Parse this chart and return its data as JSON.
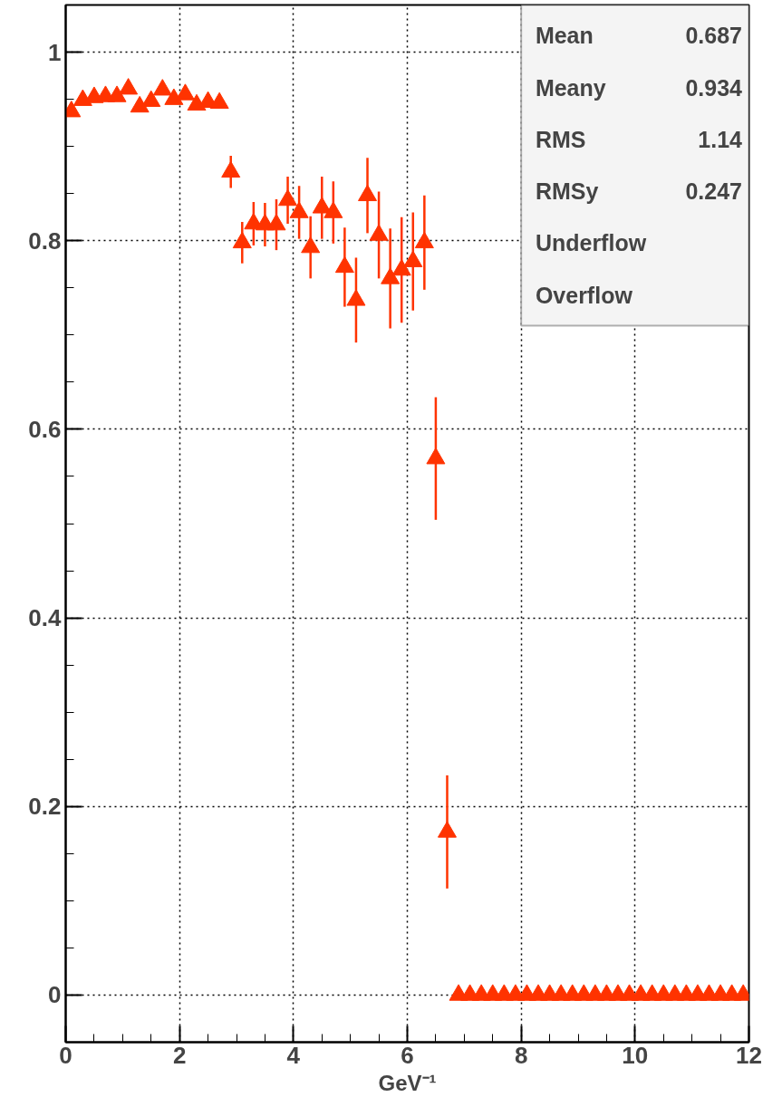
{
  "chart_data": {
    "type": "scatter",
    "xlabel": "GeV⁻¹",
    "x": [
      0.1,
      0.3,
      0.5,
      0.7,
      0.9,
      1.1,
      1.3,
      1.5,
      1.7,
      1.9,
      2.1,
      2.3,
      2.5,
      2.7,
      2.9,
      3.1,
      3.3,
      3.5,
      3.7,
      3.9,
      4.1,
      4.3,
      4.5,
      4.7,
      4.9,
      5.1,
      5.3,
      5.5,
      5.7,
      5.9,
      6.1,
      6.3,
      6.5,
      6.7,
      6.9,
      7.1,
      7.3,
      7.5,
      7.7,
      7.9,
      8.1,
      8.3,
      8.5,
      8.7,
      8.9,
      9.1,
      9.3,
      9.5,
      9.7,
      9.9,
      10.1,
      10.3,
      10.5,
      10.7,
      10.9,
      11.1,
      11.3,
      11.5,
      11.7,
      11.9
    ],
    "series": [
      {
        "color": "#ff3300",
        "values": [
          0.937,
          0.949,
          0.952,
          0.953,
          0.953,
          0.961,
          0.942,
          0.948,
          0.96,
          0.95,
          0.955,
          0.944,
          0.947,
          0.946,
          0.873,
          0.798,
          0.818,
          0.817,
          0.817,
          0.843,
          0.83,
          0.793,
          0.835,
          0.83,
          0.772,
          0.737,
          0.848,
          0.806,
          0.76,
          0.769,
          0.778,
          0.798,
          0.569,
          0.173,
          0,
          0,
          0,
          0,
          0,
          0,
          0,
          0,
          0,
          0,
          0,
          0,
          0,
          0,
          0,
          0,
          0,
          0,
          0,
          0,
          0,
          0,
          0,
          0,
          0,
          0
        ],
        "errors": [
          0.005,
          0.005,
          0.005,
          0.005,
          0.005,
          0.005,
          0.005,
          0.005,
          0.005,
          0.005,
          0.005,
          0.005,
          0.005,
          0.005,
          0.017,
          0.022,
          0.023,
          0.023,
          0.027,
          0.025,
          0.028,
          0.033,
          0.033,
          0.033,
          0.042,
          0.045,
          0.04,
          0.046,
          0.053,
          0.056,
          0.052,
          0.05,
          0.065,
          0.06,
          null,
          null,
          null,
          null,
          null,
          null,
          null,
          null,
          null,
          null,
          null,
          null,
          null,
          null,
          null,
          null,
          null,
          null,
          null,
          null,
          null,
          null,
          null,
          null,
          null,
          null
        ]
      }
    ],
    "xlim": [
      0,
      12
    ],
    "ylim": [
      -0.05,
      1.05
    ],
    "xticks": [
      0,
      2,
      4,
      6,
      8,
      10,
      12
    ],
    "yticks": [
      0,
      0.2,
      0.4,
      0.6,
      0.8,
      1
    ],
    "grid": true,
    "marker": "triangle",
    "annotations": [
      "Mean 0.687",
      "Meany 0.934",
      "RMS 1.14",
      "RMSy 0.247",
      "Underflow",
      "Overflow"
    ]
  }
}
